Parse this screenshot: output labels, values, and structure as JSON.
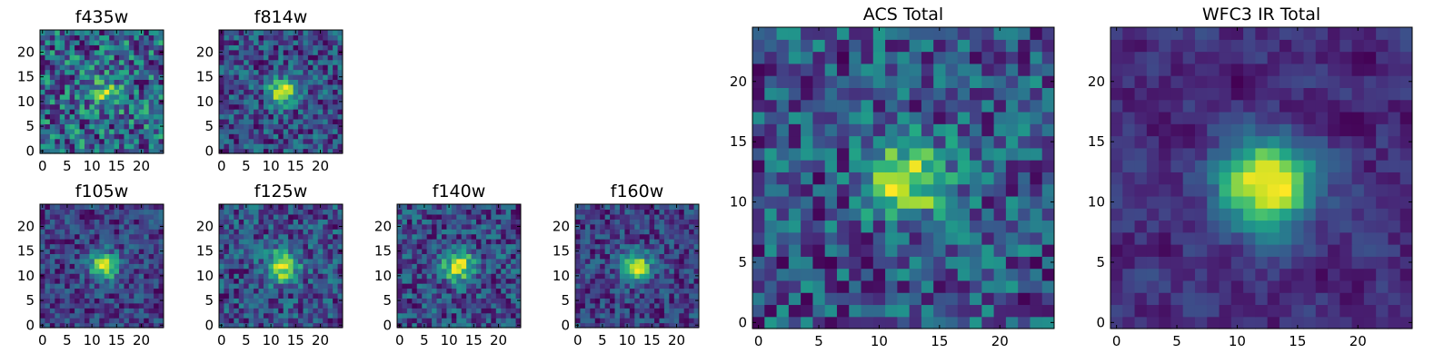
{
  "chart_data": [
    {
      "type": "heatmap",
      "title": "f435w",
      "size": 25,
      "xlim": [
        0,
        24
      ],
      "ylim": [
        0,
        24
      ],
      "xticks": [
        0,
        5,
        10,
        15,
        20
      ],
      "yticks": [
        0,
        5,
        10,
        15,
        20
      ],
      "peak": [
        12.5,
        12
      ],
      "sigma": 2.4,
      "amp": 0.22,
      "bg": 0.72,
      "noise": 0.22,
      "seed": 11,
      "blur": 0,
      "fill_bottom": true
    },
    {
      "type": "heatmap",
      "title": "f814w",
      "size": 25,
      "xlim": [
        0,
        24
      ],
      "ylim": [
        0,
        24
      ],
      "xticks": [
        0,
        5,
        10,
        15,
        20
      ],
      "yticks": [
        0,
        5,
        10,
        15,
        20
      ],
      "peak": [
        12.5,
        12
      ],
      "sigma": 1.8,
      "amp": 0.72,
      "bg": 0.32,
      "noise": 0.22,
      "seed": 23,
      "blur": 0
    },
    {
      "type": "heatmap",
      "title": "f105w",
      "size": 25,
      "xlim": [
        0,
        24
      ],
      "ylim": [
        0,
        24
      ],
      "xticks": [
        0,
        5,
        10,
        15,
        20
      ],
      "yticks": [
        0,
        5,
        10,
        15,
        20
      ],
      "peak": [
        12.5,
        12
      ],
      "sigma": 2.0,
      "amp": 0.75,
      "bg": 0.3,
      "noise": 0.2,
      "seed": 37,
      "blur": 0
    },
    {
      "type": "heatmap",
      "title": "f125w",
      "size": 25,
      "xlim": [
        0,
        24
      ],
      "ylim": [
        0,
        24
      ],
      "xticks": [
        0,
        5,
        10,
        15,
        20
      ],
      "yticks": [
        0,
        5,
        10,
        15,
        20
      ],
      "peak": [
        12.5,
        12
      ],
      "sigma": 2.2,
      "amp": 0.6,
      "bg": 0.45,
      "noise": 0.2,
      "seed": 41,
      "blur": 0
    },
    {
      "type": "heatmap",
      "title": "f140w",
      "size": 25,
      "xlim": [
        0,
        24
      ],
      "ylim": [
        0,
        24
      ],
      "xticks": [
        0,
        5,
        10,
        15,
        20
      ],
      "yticks": [
        0,
        5,
        10,
        15,
        20
      ],
      "peak": [
        12,
        12
      ],
      "sigma": 2.2,
      "amp": 0.6,
      "bg": 0.42,
      "noise": 0.22,
      "seed": 53,
      "blur": 0
    },
    {
      "type": "heatmap",
      "title": "f160w",
      "size": 25,
      "xlim": [
        0,
        24
      ],
      "ylim": [
        0,
        24
      ],
      "xticks": [
        0,
        5,
        10,
        15,
        20
      ],
      "yticks": [
        0,
        5,
        10,
        15,
        20
      ],
      "peak": [
        12,
        12
      ],
      "sigma": 2.0,
      "amp": 0.75,
      "bg": 0.25,
      "noise": 0.2,
      "seed": 67,
      "blur": 0
    },
    {
      "type": "heatmap",
      "title": "ACS Total",
      "size": 25,
      "xlim": [
        0,
        24
      ],
      "ylim": [
        0,
        24
      ],
      "xticks": [
        0,
        5,
        10,
        15,
        20
      ],
      "yticks": [
        0,
        5,
        10,
        15,
        20
      ],
      "peak": [
        12.5,
        12
      ],
      "sigma": 2.3,
      "amp": 0.55,
      "bg": 0.4,
      "noise": 0.22,
      "seed": 79,
      "blur": 0
    },
    {
      "type": "heatmap",
      "title": "WFC3 IR Total",
      "size": 25,
      "xlim": [
        0,
        24
      ],
      "ylim": [
        0,
        24
      ],
      "xticks": [
        0,
        5,
        10,
        15,
        20
      ],
      "yticks": [
        0,
        5,
        10,
        15,
        20
      ],
      "peak": [
        12.5,
        11.5
      ],
      "sigma": 2.6,
      "amp": 0.78,
      "bg": 0.22,
      "noise": 0.16,
      "seed": 97,
      "blur": 1
    }
  ],
  "colormap": "viridis",
  "colors": {
    "axes_frame": "#000000",
    "background": "#ffffff"
  }
}
